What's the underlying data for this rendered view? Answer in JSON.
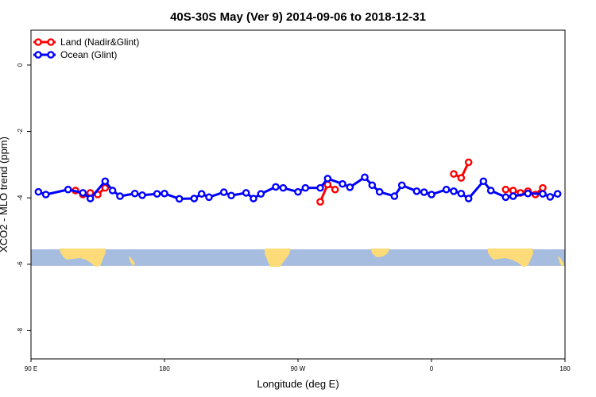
{
  "chart_data": {
    "type": "line",
    "title": "40S-30S May (Ver 9)   2014-09-06 to 2018-12-31",
    "xlabel": "Longitude (deg E)",
    "ylabel": "XCO2 - MLO trend (ppm)",
    "xlim": [
      90,
      450
    ],
    "ylim": [
      -8.85,
      1.05
    ],
    "x_ticks": [
      {
        "value": 90,
        "label": "90 E"
      },
      {
        "value": 180,
        "label": "180"
      },
      {
        "value": 270,
        "label": "90 W"
      },
      {
        "value": 360,
        "label": "0"
      },
      {
        "value": 450,
        "label": "180"
      }
    ],
    "y_ticks": [
      {
        "value": 0,
        "label": "0"
      },
      {
        "value": -2,
        "label": "-2"
      },
      {
        "value": -4,
        "label": "-4"
      },
      {
        "value": -6,
        "label": "-6"
      },
      {
        "value": -8,
        "label": "-8"
      }
    ],
    "legend_position": "top-left",
    "grid": false,
    "map_strip": {
      "y_top": -5.55,
      "y_bottom": -6.05,
      "ocean_color": "#a7bde0",
      "land_color": "#fddb78"
    },
    "series": [
      {
        "name": "Land (Nadir&Glint)",
        "color": "#ff0000",
        "segments": [
          [
            [
              120,
              -3.78
            ],
            [
              125,
              -3.9
            ],
            [
              130,
              -3.85
            ],
            [
              135,
              -3.9
            ],
            [
              140,
              -3.7
            ]
          ],
          [
            [
              285,
              -4.12
            ],
            [
              290,
              -3.6
            ],
            [
              295,
              -3.75
            ]
          ],
          [
            [
              375,
              -3.28
            ],
            [
              380,
              -3.4
            ],
            [
              385,
              -2.93
            ]
          ],
          [
            [
              410,
              -3.75
            ],
            [
              415,
              -3.78
            ],
            [
              420,
              -3.85
            ],
            [
              425,
              -3.8
            ],
            [
              430,
              -3.9
            ],
            [
              435,
              -3.7
            ]
          ]
        ]
      },
      {
        "name": "Ocean (Glint)",
        "color": "#0000ff",
        "segments": [
          [
            [
              95,
              -3.82
            ],
            [
              100,
              -3.9
            ],
            [
              115,
              -3.75
            ],
            [
              125,
              -3.85
            ],
            [
              130,
              -4.02
            ],
            [
              140,
              -3.5
            ],
            [
              145,
              -3.78
            ],
            [
              150,
              -3.95
            ],
            [
              160,
              -3.87
            ],
            [
              165,
              -3.92
            ],
            [
              175,
              -3.88
            ],
            [
              180,
              -3.87
            ],
            [
              190,
              -4.03
            ],
            [
              200,
              -4.02
            ],
            [
              205,
              -3.88
            ],
            [
              210,
              -3.98
            ],
            [
              220,
              -3.83
            ],
            [
              225,
              -3.93
            ],
            [
              235,
              -3.85
            ],
            [
              240,
              -4.02
            ],
            [
              245,
              -3.88
            ],
            [
              255,
              -3.67
            ],
            [
              260,
              -3.7
            ],
            [
              270,
              -3.82
            ],
            [
              275,
              -3.7
            ],
            [
              285,
              -3.7
            ],
            [
              290,
              -3.42
            ],
            [
              300,
              -3.58
            ],
            [
              305,
              -3.68
            ],
            [
              315,
              -3.38
            ],
            [
              320,
              -3.62
            ],
            [
              325,
              -3.82
            ],
            [
              335,
              -3.95
            ],
            [
              340,
              -3.62
            ],
            [
              350,
              -3.8
            ],
            [
              355,
              -3.83
            ],
            [
              360,
              -3.9
            ],
            [
              370,
              -3.75
            ],
            [
              375,
              -3.8
            ],
            [
              380,
              -3.87
            ],
            [
              385,
              -4.02
            ],
            [
              395,
              -3.5
            ],
            [
              400,
              -3.78
            ],
            [
              410,
              -3.98
            ],
            [
              415,
              -3.95
            ],
            [
              425,
              -3.87
            ],
            [
              435,
              -3.88
            ],
            [
              440,
              -3.97
            ],
            [
              445,
              -3.88
            ]
          ]
        ]
      }
    ]
  }
}
